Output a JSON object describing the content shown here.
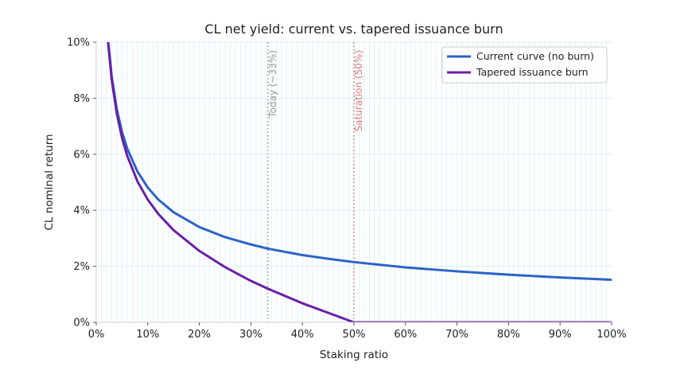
{
  "chart_data": {
    "type": "line",
    "title": "CL net yield: current vs. tapered issuance burn",
    "xlabel": "Staking ratio",
    "ylabel": "CL nominal return",
    "xlim": [
      0,
      1
    ],
    "ylim": [
      0,
      0.1
    ],
    "x_ticks": [
      0,
      0.1,
      0.2,
      0.3,
      0.4,
      0.5,
      0.6,
      0.7,
      0.8,
      0.9,
      1.0
    ],
    "x_tick_labels": [
      "0%",
      "10%",
      "20%",
      "30%",
      "40%",
      "50%",
      "60%",
      "70%",
      "80%",
      "90%",
      "100%"
    ],
    "y_ticks": [
      0,
      0.02,
      0.04,
      0.06,
      0.08,
      0.1
    ],
    "y_tick_labels": [
      "0%",
      "2%",
      "4%",
      "6%",
      "8%",
      "10%"
    ],
    "grid": true,
    "legend_position": "top-right",
    "series": [
      {
        "name": "Current curve (no burn)",
        "color": "#2b63c8",
        "x": [
          0.022,
          0.03,
          0.04,
          0.05,
          0.06,
          0.08,
          0.1,
          0.12,
          0.15,
          0.2,
          0.25,
          0.3,
          0.333,
          0.4,
          0.45,
          0.5,
          0.6,
          0.7,
          0.8,
          0.9,
          1.0
        ],
        "y": [
          0.1025,
          0.0878,
          0.076,
          0.068,
          0.0621,
          0.0538,
          0.0481,
          0.0439,
          0.0393,
          0.034,
          0.0304,
          0.0278,
          0.0263,
          0.024,
          0.0227,
          0.0215,
          0.0196,
          0.0182,
          0.017,
          0.016,
          0.0152
        ]
      },
      {
        "name": "Tapered issuance burn",
        "color": "#6a1fa6",
        "x": [
          0.022,
          0.03,
          0.04,
          0.05,
          0.06,
          0.08,
          0.1,
          0.12,
          0.15,
          0.2,
          0.25,
          0.3,
          0.333,
          0.4,
          0.45,
          0.5,
          0.6,
          0.7,
          0.8,
          0.9,
          1.0
        ],
        "y": [
          0.1019,
          0.0866,
          0.0744,
          0.0659,
          0.0595,
          0.0503,
          0.0438,
          0.0388,
          0.0329,
          0.0255,
          0.0197,
          0.0148,
          0.012,
          0.0068,
          0.0034,
          0.0,
          0.0,
          0.0,
          0.0,
          0.0,
          0.0
        ]
      }
    ],
    "vlines": [
      {
        "x": 0.333,
        "label": "Today (~33%)",
        "color": "#999999"
      },
      {
        "x": 0.5,
        "label": "Saturation (50%)",
        "color": "#d97a7a"
      }
    ]
  }
}
